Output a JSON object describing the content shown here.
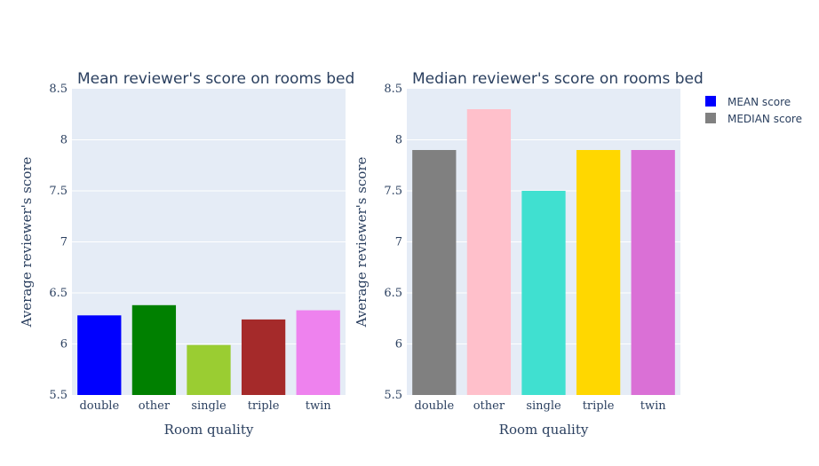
{
  "chart_data": [
    {
      "type": "bar",
      "title": "Mean reviewer's score on rooms bed",
      "xlabel": "Room quality",
      "ylabel": "Average reviewer's score",
      "categories": [
        "double",
        "other",
        "single",
        "triple",
        "twin"
      ],
      "values": [
        6.28,
        6.38,
        5.99,
        6.24,
        6.33
      ],
      "colors": [
        "#0000ff",
        "#008000",
        "#9acd32",
        "#a52a2a",
        "#ee82ee"
      ],
      "ylim": [
        5.5,
        8.5
      ],
      "yticks": [
        5.5,
        6,
        6.5,
        7,
        7.5,
        8,
        8.5
      ],
      "ytick_labels": [
        "5.5",
        "6",
        "6.5",
        "7",
        "7.5",
        "8",
        "8.5"
      ],
      "grid": true
    },
    {
      "type": "bar",
      "title": "Median reviewer's score on rooms bed",
      "xlabel": "Room quality",
      "ylabel": "Average reviewer's score",
      "categories": [
        "double",
        "other",
        "single",
        "triple",
        "twin"
      ],
      "values": [
        7.9,
        8.3,
        7.5,
        7.9,
        7.9
      ],
      "colors": [
        "#808080",
        "#ffc0cb",
        "#40e0d0",
        "#ffd700",
        "#da70d6"
      ],
      "ylim": [
        5.5,
        8.5
      ],
      "yticks": [
        5.5,
        6,
        6.5,
        7,
        7.5,
        8,
        8.5
      ],
      "ytick_labels": [
        "5.5",
        "6",
        "6.5",
        "7",
        "7.5",
        "8",
        "8.5"
      ],
      "grid": true
    }
  ],
  "legend": {
    "placement": "top-right",
    "items": [
      {
        "label": "MEAN score",
        "color": "#0000ff"
      },
      {
        "label": "MEDIAN score",
        "color": "#808080"
      }
    ]
  }
}
